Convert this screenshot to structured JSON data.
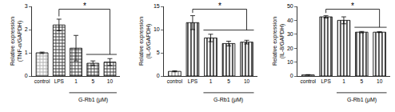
{
  "chart_data": [
    {
      "type": "bar",
      "ylabel": "Relative expression (TNF-α/GAPDH)",
      "categories": [
        "control",
        "LPS",
        "1",
        "5",
        "10"
      ],
      "values": [
        1.0,
        2.2,
        1.2,
        0.55,
        0.6
      ],
      "errors": [
        0.03,
        0.25,
        0.55,
        0.1,
        0.15
      ],
      "colors": [
        "#b0b0b0",
        "#404040",
        "#404040",
        "#404040",
        "#404040"
      ],
      "ylim": [
        0,
        3
      ],
      "yticks": [
        0,
        1,
        2,
        3
      ],
      "grid": false,
      "x_group": {
        "label": "G-Rb1 (μM)",
        "categories": [
          "1",
          "5",
          "10"
        ]
      },
      "significance": {
        "text": "*",
        "from": "LPS",
        "to": [
          "5",
          "10"
        ]
      }
    },
    {
      "type": "bar",
      "ylabel": "Relative expression (IL-6/GAPDH)",
      "categories": [
        "control",
        "LPS",
        "1",
        "5",
        "10"
      ],
      "values": [
        1.0,
        11.5,
        8.2,
        7.0,
        7.3
      ],
      "errors": [
        0.1,
        1.5,
        0.8,
        0.5,
        0.4
      ],
      "colors": [
        "#b0b0b0",
        "#404040",
        "#404040",
        "#404040",
        "#404040"
      ],
      "ylim": [
        0,
        15
      ],
      "yticks": [
        0,
        5,
        10,
        15
      ],
      "grid": false,
      "x_group": {
        "label": "G-Rb1 (μM)",
        "categories": [
          "1",
          "5",
          "10"
        ]
      },
      "significance": {
        "text": "*",
        "from": "LPS",
        "to": [
          "1",
          "5",
          "10"
        ]
      }
    },
    {
      "type": "bar",
      "ylabel": "Relative expression (IL-8/GAPDH)",
      "categories": [
        "control",
        "LPS",
        "1",
        "5",
        "10"
      ],
      "values": [
        0.8,
        42.5,
        40.0,
        31.5,
        31.5
      ],
      "errors": [
        0.2,
        0.8,
        2.5,
        0.5,
        0.3
      ],
      "colors": [
        "#b0b0b0",
        "#404040",
        "#404040",
        "#404040",
        "#404040"
      ],
      "ylim": [
        0,
        50
      ],
      "yticks": [
        0,
        10,
        20,
        30,
        40,
        50
      ],
      "grid": false,
      "x_group": {
        "label": "G-Rb1 (μM)",
        "categories": [
          "1",
          "5",
          "10"
        ]
      },
      "significance": {
        "text": "*",
        "from": "LPS",
        "to": [
          "5",
          "10"
        ]
      }
    }
  ]
}
